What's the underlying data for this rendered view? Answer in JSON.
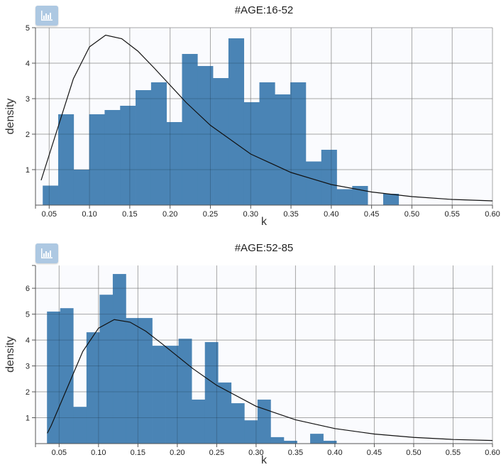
{
  "charts_ui": {
    "icon": "bar-chart-icon"
  },
  "chart_data": [
    {
      "type": "bar",
      "title": "#AGE:16-52",
      "xlabel": "k",
      "ylabel": "density",
      "xlim": [
        0.033,
        0.6
      ],
      "ylim": [
        0,
        5
      ],
      "xticks": [
        "0.05",
        "0.10",
        "0.15",
        "0.20",
        "0.25",
        "0.30",
        "0.35",
        "0.40",
        "0.45",
        "0.50",
        "0.55",
        "0.60"
      ],
      "yticks": [
        "1",
        "2",
        "3",
        "4",
        "5"
      ],
      "grid": true,
      "bin_start": 0.042,
      "bin_width": 0.0192,
      "values": [
        0.55,
        2.56,
        1.0,
        2.56,
        2.68,
        2.8,
        3.24,
        3.46,
        2.34,
        4.26,
        3.92,
        3.58,
        4.7,
        2.9,
        3.46,
        3.12,
        3.46,
        1.23,
        1.56,
        0.45,
        0.54,
        0,
        0.32
      ],
      "bar_color": "#4682b4",
      "curve": {
        "x": [
          0.04,
          0.06,
          0.08,
          0.1,
          0.12,
          0.14,
          0.16,
          0.18,
          0.2,
          0.22,
          0.25,
          0.3,
          0.35,
          0.4,
          0.45,
          0.5,
          0.55,
          0.6
        ],
        "y": [
          0.7,
          2.13,
          3.56,
          4.46,
          4.79,
          4.69,
          4.34,
          3.87,
          3.38,
          2.89,
          2.25,
          1.44,
          0.92,
          0.58,
          0.37,
          0.24,
          0.16,
          0.12
        ]
      }
    },
    {
      "type": "bar",
      "title": "#AGE:52-85",
      "xlabel": "k",
      "ylabel": "density",
      "xlim": [
        0.02,
        0.6
      ],
      "ylim": [
        0,
        6.88
      ],
      "xticks": [
        "0.05",
        "0.10",
        "0.15",
        "0.20",
        "0.25",
        "0.30",
        "0.35",
        "0.40",
        "0.45",
        "0.50",
        "0.55",
        "0.60"
      ],
      "yticks": [
        "1",
        "2",
        "3",
        "4",
        "5",
        "6"
      ],
      "grid": true,
      "bin_start": 0.0346,
      "bin_width": 0.0167,
      "values": [
        5.1,
        5.23,
        1.42,
        4.3,
        5.75,
        6.55,
        4.85,
        4.85,
        3.78,
        3.78,
        4.05,
        1.7,
        3.92,
        2.36,
        1.56,
        0.9,
        1.7,
        0.25,
        0.11,
        0,
        0.38,
        0.11
      ],
      "bar_color": "#4682b4",
      "curve": {
        "x": [
          0.035,
          0.04,
          0.06,
          0.08,
          0.1,
          0.12,
          0.14,
          0.16,
          0.18,
          0.2,
          0.22,
          0.25,
          0.3,
          0.35,
          0.4,
          0.45,
          0.5,
          0.55,
          0.6
        ],
        "y": [
          0.4,
          0.7,
          2.13,
          3.56,
          4.46,
          4.79,
          4.69,
          4.34,
          3.87,
          3.38,
          2.89,
          2.25,
          1.44,
          0.92,
          0.58,
          0.37,
          0.24,
          0.16,
          0.12
        ]
      }
    }
  ]
}
